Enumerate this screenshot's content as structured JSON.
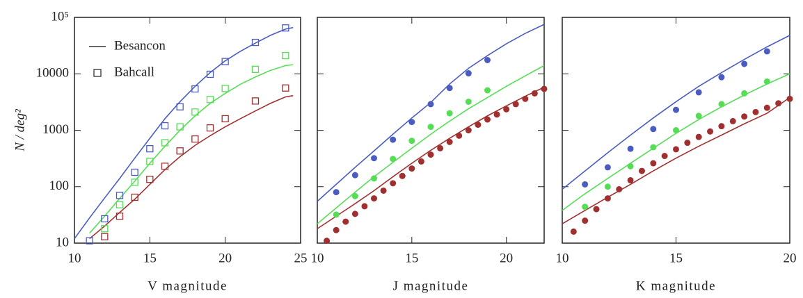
{
  "chart_data": [
    {
      "type": "line",
      "xlabel": "V magnitude",
      "ylabel": "N / deg²",
      "log_y": true,
      "xlim": [
        10,
        25
      ],
      "xticks": [
        10,
        15,
        20,
        25
      ],
      "ylim": [
        10,
        100000
      ],
      "yticks": [
        10,
        100,
        1000,
        10000,
        {
          "value": 100000,
          "label": "10⁵"
        }
      ],
      "legend": [
        {
          "label": "Besancon",
          "marker": "line"
        },
        {
          "label": "Bahcall",
          "marker": "square"
        }
      ],
      "legend_color": "#333333",
      "series": [
        {
          "style": "line",
          "color": "#4a5cc0",
          "x": [
            10,
            11,
            12,
            13,
            14,
            15,
            16,
            17,
            18,
            19,
            20,
            21,
            22,
            23,
            24,
            24.5
          ],
          "values": [
            12,
            28,
            63,
            140,
            320,
            720,
            1600,
            3200,
            6000,
            10500,
            17000,
            25000,
            35000,
            48000,
            62000,
            66000
          ]
        },
        {
          "style": "line",
          "color": "#55dd55",
          "x": [
            11,
            12,
            13,
            14,
            15,
            16,
            17,
            18,
            19,
            20,
            21,
            22,
            23,
            24,
            24.5
          ],
          "values": [
            15,
            30,
            62,
            125,
            260,
            520,
            1000,
            1800,
            3000,
            4500,
            6500,
            8800,
            11500,
            14000,
            14500
          ]
        },
        {
          "style": "line",
          "color": "#a03030",
          "x": [
            11,
            12,
            13,
            14,
            15,
            16,
            17,
            18,
            19,
            20,
            21,
            22,
            23,
            24,
            24.5
          ],
          "values": [
            12,
            20,
            35,
            60,
            110,
            200,
            340,
            540,
            800,
            1150,
            1600,
            2200,
            3000,
            3900,
            4100
          ]
        },
        {
          "style": "square",
          "color": "#4a5cc0",
          "x": [
            11,
            12,
            13,
            14,
            15,
            16,
            17,
            18,
            19,
            20,
            22,
            24
          ],
          "values": [
            11,
            27,
            70,
            180,
            470,
            1200,
            2600,
            5400,
            9800,
            16500,
            36000,
            65000
          ]
        },
        {
          "style": "square",
          "color": "#55dd55",
          "x": [
            12,
            13,
            14,
            15,
            16,
            17,
            18,
            19,
            20,
            22,
            24
          ],
          "values": [
            18,
            48,
            120,
            280,
            600,
            1150,
            2100,
            3500,
            5500,
            12000,
            21000
          ]
        },
        {
          "style": "square",
          "color": "#a03030",
          "x": [
            12,
            13,
            14,
            15,
            16,
            17,
            18,
            19,
            20,
            22,
            24
          ],
          "values": [
            13,
            30,
            65,
            135,
            230,
            430,
            700,
            1100,
            1600,
            3300,
            5600
          ]
        }
      ]
    },
    {
      "type": "line",
      "xlabel": "J magnitude",
      "log_y": true,
      "xlim": [
        10,
        22
      ],
      "xticks": [
        10,
        15,
        20
      ],
      "ylim": [
        10,
        100000
      ],
      "yticks": [
        10,
        100,
        1000,
        10000,
        100000
      ],
      "series": [
        {
          "style": "line",
          "color": "#4a5cc0",
          "x": [
            10,
            11,
            12,
            13,
            14,
            15,
            16,
            17,
            18,
            19,
            20,
            21,
            22
          ],
          "values": [
            55,
            110,
            220,
            430,
            850,
            1650,
            3100,
            6600,
            12500,
            21000,
            34000,
            52000,
            75000
          ]
        },
        {
          "style": "line",
          "color": "#55dd55",
          "x": [
            10,
            11,
            12,
            13,
            14,
            15,
            16,
            17,
            18,
            19,
            20,
            21,
            22
          ],
          "values": [
            22,
            42,
            80,
            150,
            270,
            480,
            850,
            1450,
            2400,
            3800,
            6000,
            9200,
            14000
          ]
        },
        {
          "style": "line",
          "color": "#a03030",
          "x": [
            10,
            11,
            12,
            13,
            14,
            15,
            16,
            17,
            18,
            19,
            20,
            21,
            22
          ],
          "values": [
            18,
            30,
            50,
            85,
            150,
            260,
            440,
            720,
            1150,
            1800,
            2700,
            4000,
            5800
          ]
        },
        {
          "style": "dot",
          "color": "#4a5cc0",
          "x": [
            11,
            12,
            13,
            14,
            15,
            16,
            17,
            18,
            19
          ],
          "values": [
            80,
            160,
            320,
            680,
            1400,
            2900,
            5600,
            10200,
            17500
          ]
        },
        {
          "style": "dot",
          "color": "#55dd55",
          "x": [
            11,
            12,
            13,
            14,
            15,
            16,
            17,
            18,
            19
          ],
          "values": [
            32,
            68,
            140,
            310,
            650,
            1150,
            2000,
            3200,
            5100
          ]
        },
        {
          "style": "dot",
          "color": "#a03030",
          "x": [
            10.5,
            11,
            11.5,
            12,
            12.5,
            13,
            13.5,
            14,
            14.5,
            15,
            15.5,
            16,
            16.5,
            17,
            17.5,
            18,
            18.5,
            19,
            19.5,
            20,
            20.5,
            21,
            21.5,
            22
          ],
          "values": [
            11,
            17,
            24,
            33,
            45,
            62,
            85,
            115,
            155,
            210,
            280,
            370,
            480,
            620,
            800,
            1000,
            1250,
            1550,
            1900,
            2350,
            2900,
            3600,
            4500,
            5400
          ]
        }
      ]
    },
    {
      "type": "line",
      "xlabel": "K magnitude",
      "log_y": true,
      "xlim": [
        10,
        20
      ],
      "xticks": [
        10,
        15,
        20
      ],
      "ylim": [
        10,
        100000
      ],
      "yticks": [
        10,
        100,
        1000,
        10000,
        100000
      ],
      "series": [
        {
          "style": "line",
          "color": "#4a5cc0",
          "x": [
            10,
            11,
            12,
            13,
            14,
            15,
            16,
            17,
            18,
            19,
            20
          ],
          "values": [
            90,
            190,
            400,
            820,
            1650,
            3200,
            6000,
            10500,
            18000,
            30000,
            48000
          ]
        },
        {
          "style": "line",
          "color": "#55dd55",
          "x": [
            10,
            11,
            12,
            13,
            14,
            15,
            16,
            17,
            18,
            19,
            20
          ],
          "values": [
            38,
            75,
            140,
            260,
            480,
            880,
            1550,
            2600,
            4200,
            6600,
            10000
          ]
        },
        {
          "style": "line",
          "color": "#a03030",
          "x": [
            10,
            11,
            12,
            13,
            14,
            15,
            16,
            17,
            18,
            19,
            20
          ],
          "values": [
            22,
            38,
            65,
            110,
            190,
            320,
            520,
            820,
            1300,
            2000,
            3800
          ]
        },
        {
          "style": "dot",
          "color": "#4a5cc0",
          "x": [
            11,
            12,
            13,
            14,
            15,
            16,
            17,
            18,
            19
          ],
          "values": [
            110,
            220,
            470,
            1050,
            2300,
            4700,
            8700,
            15000,
            25000
          ]
        },
        {
          "style": "dot",
          "color": "#55dd55",
          "x": [
            11,
            12,
            13,
            14,
            15,
            16,
            17,
            18,
            19
          ],
          "values": [
            44,
            100,
            230,
            500,
            1000,
            1800,
            2900,
            4500,
            7300
          ]
        },
        {
          "style": "dot",
          "color": "#a03030",
          "x": [
            10.5,
            11,
            11.5,
            12,
            12.5,
            13,
            13.5,
            14,
            14.5,
            15,
            15.5,
            16,
            16.5,
            17,
            17.5,
            18,
            18.5,
            19,
            19.5,
            20
          ],
          "values": [
            16,
            25,
            40,
            62,
            90,
            130,
            190,
            260,
            350,
            460,
            600,
            760,
            950,
            1180,
            1450,
            1750,
            2100,
            2500,
            3000,
            3600
          ]
        }
      ]
    }
  ]
}
